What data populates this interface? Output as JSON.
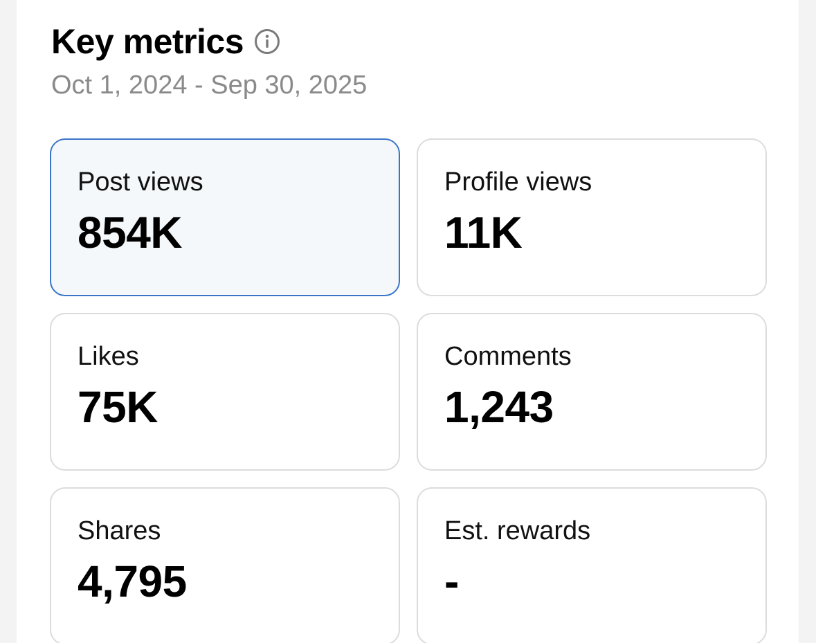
{
  "header": {
    "title": "Key metrics",
    "info_icon": "info-circle-icon",
    "date_range": "Oct 1, 2024 - Sep 30, 2025"
  },
  "metrics": [
    {
      "label": "Post views",
      "value": "854K",
      "selected": true
    },
    {
      "label": "Profile views",
      "value": "11K",
      "selected": false
    },
    {
      "label": "Likes",
      "value": "75K",
      "selected": false
    },
    {
      "label": "Comments",
      "value": "1,243",
      "selected": false
    },
    {
      "label": "Shares",
      "value": "4,795",
      "selected": false
    },
    {
      "label": "Est. rewards",
      "value": "-",
      "selected": false
    }
  ],
  "colors": {
    "selected_border": "#3a74c9",
    "selected_background": "#f4f8fb",
    "muted_text": "#8a8a8a",
    "card_border": "#dcdcdc"
  }
}
